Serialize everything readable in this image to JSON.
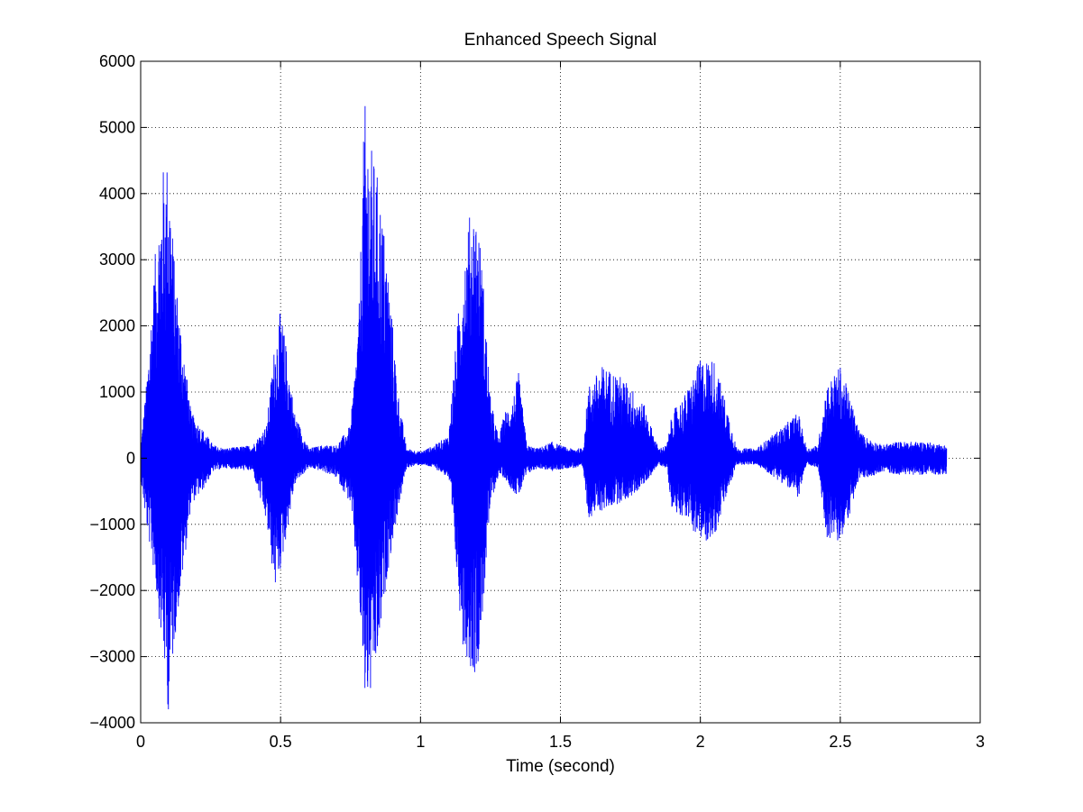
{
  "chart_data": {
    "type": "line",
    "title": "Enhanced Speech Signal",
    "xlabel": "Time (second)",
    "ylabel": "",
    "xlim": [
      0,
      3
    ],
    "ylim": [
      -4000,
      6000
    ],
    "grid": true,
    "grid_style": "dotted",
    "x_ticks": [
      0,
      0.5,
      1,
      1.5,
      2,
      2.5,
      3
    ],
    "x_tick_labels": [
      "0",
      "0.5",
      "1",
      "1.5",
      "2",
      "2.5",
      "3"
    ],
    "y_ticks": [
      -4000,
      -3000,
      -2000,
      -1000,
      0,
      1000,
      2000,
      3000,
      4000,
      5000,
      6000
    ],
    "y_tick_labels": [
      "−4000",
      "−3000",
      "−2000",
      "−1000",
      "0",
      "1000",
      "2000",
      "3000",
      "4000",
      "5000",
      "6000"
    ],
    "series": [
      {
        "color": "#0000ff",
        "x_start": 0,
        "x_end": 2.88,
        "peak_envelope": {
          "x": [
            0,
            0.02,
            0.05,
            0.08,
            0.1,
            0.12,
            0.15,
            0.18,
            0.22,
            0.26,
            0.3,
            0.4,
            0.45,
            0.48,
            0.5,
            0.52,
            0.55,
            0.6,
            0.65,
            0.7,
            0.75,
            0.78,
            0.8,
            0.82,
            0.85,
            0.88,
            0.92,
            0.95,
            1.0,
            1.05,
            1.1,
            1.15,
            1.18,
            1.2,
            1.22,
            1.25,
            1.28,
            1.3,
            1.33,
            1.35,
            1.38,
            1.42,
            1.47,
            1.53,
            1.58,
            1.6,
            1.65,
            1.7,
            1.75,
            1.8,
            1.85,
            1.88,
            1.9,
            1.95,
            2.0,
            2.05,
            2.1,
            2.13,
            2.16,
            2.2,
            2.3,
            2.35,
            2.38,
            2.42,
            2.45,
            2.5,
            2.53,
            2.57,
            2.6,
            2.65,
            2.7,
            2.8,
            2.88
          ],
          "upper": [
            200,
            1100,
            3000,
            4400,
            4600,
            3000,
            1800,
            700,
            450,
            200,
            150,
            200,
            500,
            1800,
            2250,
            1700,
            700,
            150,
            200,
            200,
            500,
            2200,
            5400,
            4800,
            4200,
            3100,
            1000,
            150,
            100,
            200,
            350,
            3000,
            3800,
            3800,
            3000,
            900,
            300,
            700,
            900,
            1300,
            200,
            150,
            250,
            150,
            150,
            1100,
            1400,
            1300,
            1100,
            800,
            150,
            200,
            700,
            1000,
            1500,
            1500,
            700,
            150,
            150,
            150,
            500,
            700,
            150,
            200,
            1100,
            1400,
            1000,
            400,
            300,
            200,
            250,
            250,
            200
          ],
          "lower": [
            -300,
            -1000,
            -1800,
            -3000,
            -3900,
            -2800,
            -1800,
            -700,
            -500,
            -200,
            -150,
            -200,
            -1000,
            -2000,
            -1700,
            -1200,
            -400,
            -150,
            -200,
            -300,
            -700,
            -2200,
            -3700,
            -3700,
            -3000,
            -1800,
            -800,
            -150,
            -100,
            -150,
            -300,
            -2800,
            -3200,
            -3300,
            -2500,
            -700,
            -250,
            -300,
            -500,
            -600,
            -250,
            -150,
            -200,
            -150,
            -150,
            -900,
            -800,
            -700,
            -600,
            -400,
            -100,
            -150,
            -800,
            -900,
            -1300,
            -1200,
            -500,
            -100,
            -100,
            -100,
            -400,
            -600,
            -100,
            -150,
            -1200,
            -1300,
            -900,
            -300,
            -300,
            -200,
            -250,
            -250,
            -250
          ]
        }
      }
    ]
  }
}
